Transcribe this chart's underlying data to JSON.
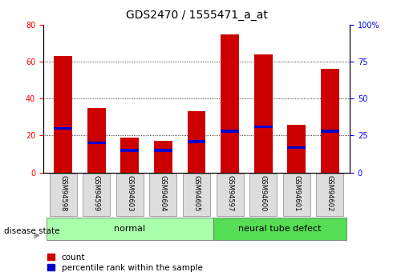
{
  "title": "GDS2470 / 1555471_a_at",
  "samples": [
    "GSM94598",
    "GSM94599",
    "GSM94603",
    "GSM94604",
    "GSM94605",
    "GSM94597",
    "GSM94600",
    "GSM94601",
    "GSM94602"
  ],
  "count_values": [
    63,
    35,
    19,
    17,
    33,
    75,
    64,
    26,
    56
  ],
  "percentile_values": [
    30,
    20,
    15,
    15,
    21,
    28,
    31,
    17,
    28
  ],
  "groups": [
    {
      "label": "normal",
      "indices": [
        0,
        1,
        2,
        3,
        4
      ]
    },
    {
      "label": "neural tube defect",
      "indices": [
        5,
        6,
        7,
        8
      ]
    }
  ],
  "disease_state_label": "disease state",
  "bar_color": "#cc0000",
  "percentile_color": "#0000cc",
  "left_ylim": [
    0,
    80
  ],
  "right_ylim": [
    0,
    100
  ],
  "left_yticks": [
    0,
    20,
    40,
    60,
    80
  ],
  "right_yticks": [
    0,
    25,
    50,
    75,
    100
  ],
  "right_yticklabels": [
    "0",
    "25",
    "50",
    "75",
    "100%"
  ],
  "grid_lines": [
    20,
    40,
    60
  ],
  "legend_count_label": "count",
  "legend_percentile_label": "percentile rank within the sample",
  "normal_bg": "#aaffaa",
  "defect_bg": "#55dd55",
  "tick_bg": "#dddddd",
  "bar_width": 0.55,
  "percentile_bar_height": 1.5,
  "title_fontsize": 10,
  "tick_fontsize": 7,
  "label_fontsize": 8
}
